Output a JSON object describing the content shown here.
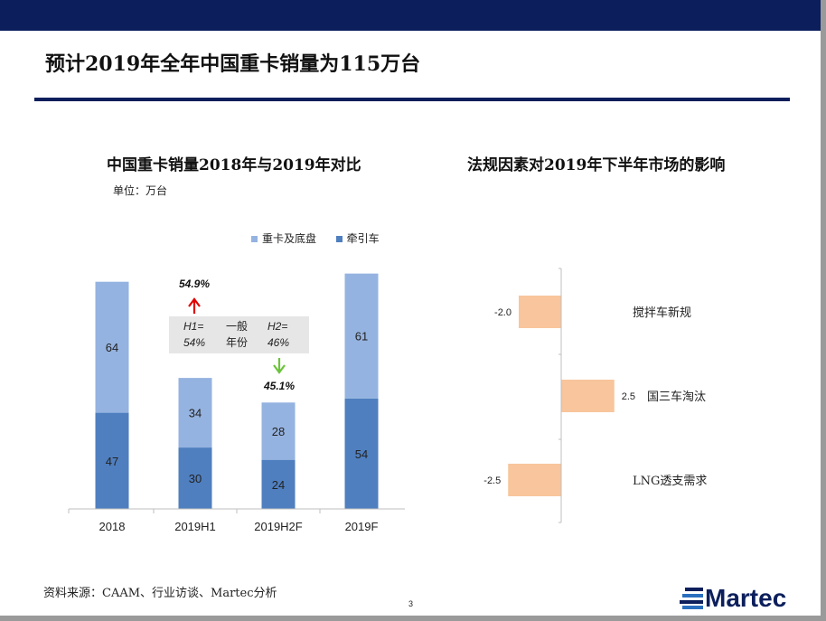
{
  "title": "预计2019年全年中国重卡销量为115万台",
  "source": "资料来源：CAAM、行业访谈、Martec分析",
  "page": "3",
  "logo_text": "Martec",
  "colors": {
    "brand_navy": "#0c1f5c",
    "tractor": "#4f7fbf",
    "chassis": "#95b3e0",
    "impact_bar": "#f8c59c",
    "up_arrow": "#e00000",
    "down_arrow": "#6cc33c"
  },
  "chart_data": [
    {
      "type": "bar",
      "stacked": true,
      "title": "中国重卡销量2018年与2019年对比",
      "unit": "单位：万台",
      "categories": [
        "2018",
        "2019H1",
        "2019H2F",
        "2019F"
      ],
      "series": [
        {
          "name": "牵引车",
          "values": [
            47,
            30,
            24,
            54
          ]
        },
        {
          "name": "重卡及底盘",
          "values": [
            64,
            34,
            28,
            61
          ]
        }
      ],
      "ylim": [
        0,
        125
      ],
      "legend": "top-right",
      "grid": false,
      "annotations": {
        "h1_share": "54.9%",
        "h2_share": "45.1%",
        "h1_label": "H1=",
        "h1_pct": "54%",
        "note_1": "一般",
        "note_2": "年份",
        "h2_label": "H2=",
        "h2_pct": "46%"
      }
    },
    {
      "type": "bar",
      "orientation": "horizontal",
      "title": "法规因素对2019年下半年市场的影响",
      "categories": [
        "搅拌车新规",
        "国三车淘汰",
        "LNG透支需求"
      ],
      "values": [
        -2.0,
        2.5,
        -2.5
      ],
      "value_labels": [
        "-2.0",
        "2.5",
        "-2.5"
      ],
      "xlim": [
        -3,
        3
      ],
      "grid": false
    }
  ]
}
